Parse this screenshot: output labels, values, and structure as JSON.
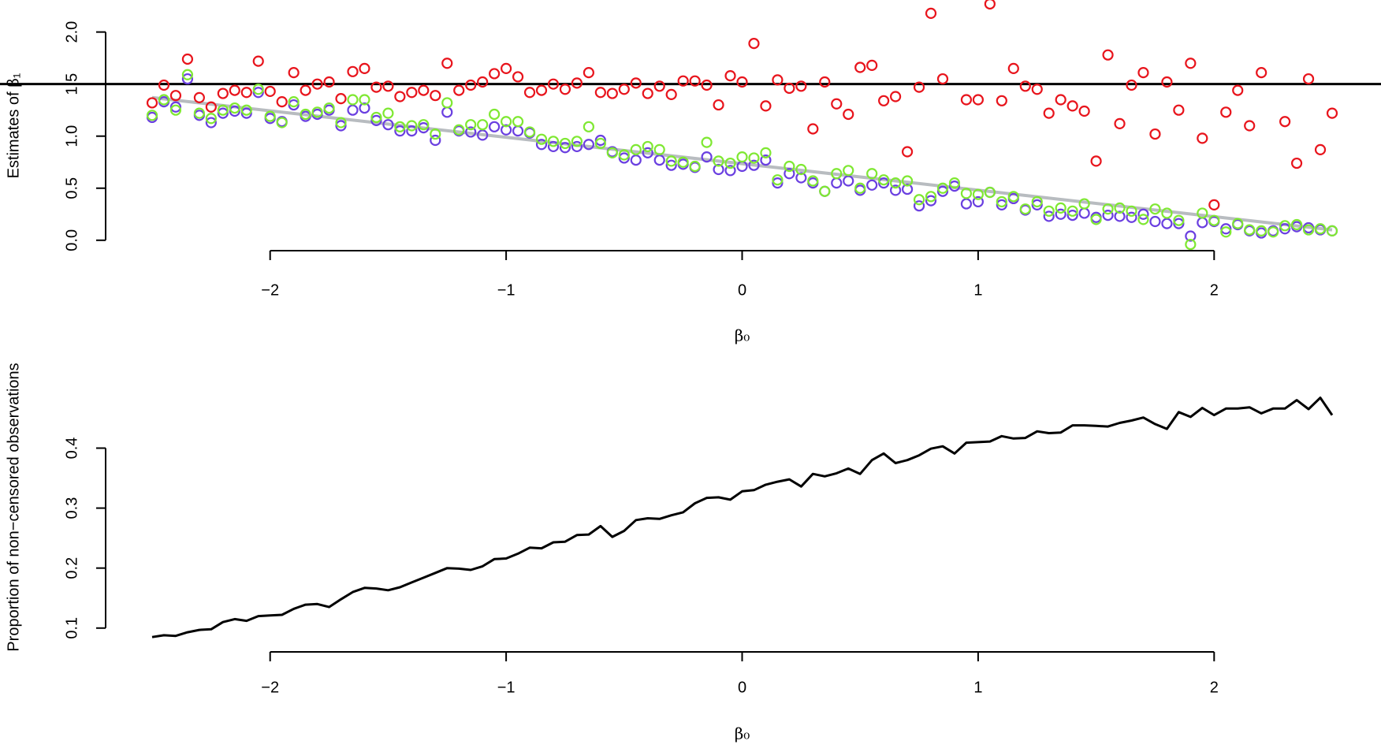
{
  "chart_data": [
    {
      "type": "scatter",
      "ylabel": "Estimates of β₁",
      "xlabel": "β₀",
      "xlim": [
        -2.5,
        2.5
      ],
      "ylim": [
        -0.1,
        2.3
      ],
      "xticks": [
        {
          "value": -2,
          "label": "−2"
        },
        {
          "value": -1,
          "label": "−1"
        },
        0,
        1,
        2
      ],
      "yticks": [
        {
          "value": 0,
          "label": "0.0"
        },
        0.5,
        {
          "value": 1,
          "label": "1.0"
        },
        1.5,
        {
          "value": 2,
          "label": "2.0"
        }
      ],
      "hline": 1.5,
      "hline_color": "#000000",
      "x": [
        -2.5,
        -2.45,
        -2.4,
        -2.35,
        -2.3,
        -2.25,
        -2.2,
        -2.15,
        -2.1,
        -2.05,
        -2,
        -1.95,
        -1.9,
        -1.85,
        -1.8,
        -1.75,
        -1.7,
        -1.65,
        -1.6,
        -1.55,
        -1.5,
        -1.45,
        -1.4,
        -1.35,
        -1.3,
        -1.25,
        -1.2,
        -1.15,
        -1.1,
        -1.05,
        -1,
        -0.95,
        -0.9,
        -0.85,
        -0.8,
        -0.75,
        -0.7,
        -0.65,
        -0.6,
        -0.55,
        -0.5,
        -0.45,
        -0.4,
        -0.35,
        -0.3,
        -0.25,
        -0.2,
        -0.15,
        -0.1,
        -0.05,
        0,
        0.05,
        0.1,
        0.15,
        0.2,
        0.25,
        0.3,
        0.35,
        0.4,
        0.45,
        0.5,
        0.55,
        0.6,
        0.65,
        0.7,
        0.75,
        0.8,
        0.85,
        0.9,
        0.95,
        1,
        1.05,
        1.1,
        1.15,
        1.2,
        1.25,
        1.3,
        1.35,
        1.4,
        1.45,
        1.5,
        1.55,
        1.6,
        1.65,
        1.7,
        1.75,
        1.8,
        1.85,
        1.9,
        1.95,
        2,
        2.05,
        2.1,
        2.15,
        2.2,
        2.25,
        2.3,
        2.35,
        2.4,
        2.45,
        2.5
      ],
      "series": [
        {
          "color": "#e8141c",
          "values": [
            1.32,
            1.49,
            1.39,
            1.74,
            1.37,
            1.28,
            1.41,
            1.44,
            1.42,
            1.72,
            1.43,
            1.33,
            1.61,
            1.44,
            1.5,
            1.52,
            1.36,
            1.62,
            1.65,
            1.47,
            1.48,
            1.38,
            1.42,
            1.44,
            1.39,
            1.7,
            1.44,
            1.49,
            1.52,
            1.6,
            1.65,
            1.57,
            1.42,
            1.44,
            1.5,
            1.45,
            1.51,
            1.61,
            1.42,
            1.41,
            1.45,
            1.51,
            1.41,
            1.48,
            1.4,
            1.53,
            1.53,
            1.49,
            1.3,
            1.58,
            1.52,
            1.89,
            1.29,
            1.54,
            1.46,
            1.48,
            1.07,
            1.52,
            1.31,
            1.21,
            1.66,
            1.68,
            1.34,
            1.38,
            0.85,
            1.47,
            2.18,
            1.55,
            null,
            1.35,
            1.35,
            2.27,
            1.34,
            1.65,
            1.48,
            1.45,
            1.22,
            1.35,
            1.29,
            1.24,
            0.76,
            1.78,
            1.12,
            1.49,
            1.61,
            1.02,
            1.52,
            1.25,
            1.7,
            0.98,
            0.34,
            1.23,
            1.44,
            1.1,
            1.61,
            null,
            1.14,
            0.74,
            1.55,
            0.87,
            1.22
          ]
        },
        {
          "color": "#6a3fe0",
          "values": [
            1.18,
            1.33,
            1.28,
            1.55,
            1.2,
            1.13,
            1.22,
            1.24,
            1.22,
            1.42,
            1.17,
            1.14,
            1.3,
            1.19,
            1.21,
            1.25,
            1.1,
            1.25,
            1.27,
            1.15,
            1.11,
            1.05,
            1.05,
            1.08,
            0.96,
            1.23,
            1.05,
            1.04,
            1.01,
            1.09,
            1.06,
            1.05,
            1.03,
            0.92,
            0.9,
            0.89,
            0.9,
            0.92,
            0.96,
            0.85,
            0.79,
            0.77,
            0.84,
            0.77,
            0.72,
            0.73,
            0.7,
            0.8,
            0.68,
            0.67,
            0.71,
            0.72,
            0.77,
            0.55,
            0.64,
            0.6,
            0.55,
            0.47,
            0.55,
            0.57,
            0.48,
            0.53,
            0.55,
            0.48,
            0.49,
            0.33,
            0.38,
            0.47,
            0.52,
            0.35,
            0.37,
            0.46,
            0.34,
            0.4,
            0.29,
            0.34,
            0.23,
            0.25,
            0.24,
            0.26,
            0.22,
            0.24,
            0.23,
            0.22,
            0.25,
            0.18,
            0.16,
            0.16,
            0.04,
            0.17,
            0.18,
            0.11,
            0.15,
            0.09,
            0.07,
            0.09,
            0.11,
            0.13,
            0.12,
            0.1,
            0.09
          ]
        },
        {
          "color": "#7fe832",
          "values": [
            1.2,
            1.35,
            1.25,
            1.59,
            1.22,
            1.17,
            1.25,
            1.27,
            1.25,
            1.45,
            1.19,
            1.13,
            1.33,
            1.21,
            1.23,
            1.27,
            1.13,
            1.35,
            1.35,
            1.18,
            1.22,
            1.09,
            1.1,
            1.11,
            1.02,
            1.32,
            1.06,
            1.11,
            1.11,
            1.21,
            1.14,
            1.14,
            1.04,
            0.97,
            0.95,
            0.93,
            0.95,
            1.09,
            0.93,
            0.84,
            0.82,
            0.87,
            0.9,
            0.87,
            0.76,
            0.75,
            0.71,
            0.94,
            0.76,
            0.74,
            0.8,
            0.79,
            0.84,
            0.58,
            0.71,
            0.68,
            0.57,
            0.47,
            0.64,
            0.67,
            0.5,
            0.64,
            0.58,
            0.55,
            0.57,
            0.39,
            0.42,
            0.5,
            0.55,
            0.45,
            0.44,
            0.46,
            0.37,
            0.42,
            0.3,
            0.37,
            0.28,
            0.31,
            0.28,
            0.35,
            0.2,
            0.3,
            0.31,
            0.28,
            0.2,
            0.3,
            0.26,
            0.19,
            -0.04,
            0.26,
            0.19,
            0.08,
            0.16,
            0.1,
            0.09,
            0.08,
            0.14,
            0.15,
            0.1,
            0.11,
            0.09
          ]
        },
        {
          "color": "#b8bcc0",
          "style": "line",
          "x": [
            -2.5,
            2.5
          ],
          "values": [
            1.37,
            0.1
          ]
        }
      ]
    },
    {
      "type": "line",
      "ylabel": "Proportion of non−censored observations",
      "xlabel": "β₀",
      "xlim": [
        -2.5,
        2.5
      ],
      "ylim": [
        0.08,
        0.49
      ],
      "xticks": [
        {
          "value": -2,
          "label": "−2"
        },
        {
          "value": -1,
          "label": "−1"
        },
        0,
        1,
        2
      ],
      "yticks": [
        0.1,
        0.2,
        0.3,
        0.4
      ],
      "x": [
        -2.5,
        -2.45,
        -2.4,
        -2.35,
        -2.3,
        -2.25,
        -2.2,
        -2.15,
        -2.1,
        -2.05,
        -2,
        -1.95,
        -1.9,
        -1.85,
        -1.8,
        -1.75,
        -1.7,
        -1.65,
        -1.6,
        -1.55,
        -1.5,
        -1.45,
        -1.4,
        -1.35,
        -1.3,
        -1.25,
        -1.2,
        -1.15,
        -1.1,
        -1.05,
        -1,
        -0.95,
        -0.9,
        -0.85,
        -0.8,
        -0.75,
        -0.7,
        -0.65,
        -0.6,
        -0.55,
        -0.5,
        -0.45,
        -0.4,
        -0.35,
        -0.3,
        -0.25,
        -0.2,
        -0.15,
        -0.1,
        -0.05,
        0,
        0.05,
        0.1,
        0.15,
        0.2,
        0.25,
        0.3,
        0.35,
        0.4,
        0.45,
        0.5,
        0.55,
        0.6,
        0.65,
        0.7,
        0.75,
        0.8,
        0.85,
        0.9,
        0.95,
        1,
        1.05,
        1.1,
        1.15,
        1.2,
        1.25,
        1.3,
        1.35,
        1.4,
        1.45,
        1.5,
        1.55,
        1.6,
        1.65,
        1.7,
        1.75,
        1.8,
        1.85,
        1.9,
        1.95,
        2,
        2.05,
        2.1,
        2.15,
        2.2,
        2.25,
        2.3,
        2.35,
        2.4,
        2.45,
        2.5
      ],
      "series": [
        {
          "color": "#000000",
          "values": [
            0.085,
            0.088,
            0.087,
            0.093,
            0.097,
            0.098,
            0.11,
            0.115,
            0.112,
            0.12,
            0.121,
            0.122,
            0.132,
            0.139,
            0.14,
            0.135,
            0.148,
            0.16,
            0.167,
            0.166,
            0.163,
            0.168,
            0.176,
            0.184,
            0.192,
            0.2,
            0.199,
            0.197,
            0.203,
            0.215,
            0.216,
            0.224,
            0.234,
            0.233,
            0.243,
            0.244,
            0.255,
            0.256,
            0.27,
            0.252,
            0.262,
            0.28,
            0.283,
            0.282,
            0.288,
            0.293,
            0.308,
            0.317,
            0.318,
            0.314,
            0.328,
            0.33,
            0.339,
            0.344,
            0.348,
            0.336,
            0.357,
            0.353,
            0.358,
            0.366,
            0.357,
            0.38,
            0.391,
            0.375,
            0.38,
            0.388,
            0.399,
            0.403,
            0.391,
            0.409,
            0.41,
            0.411,
            0.42,
            0.416,
            0.417,
            0.428,
            0.425,
            0.426,
            0.438,
            0.438,
            0.437,
            0.436,
            0.442,
            0.446,
            0.451,
            0.44,
            0.432,
            0.46,
            0.452,
            0.467,
            0.455,
            0.466,
            0.466,
            0.468,
            0.458,
            0.466,
            0.466,
            0.48,
            0.465,
            0.484,
            0.455
          ]
        }
      ]
    }
  ]
}
